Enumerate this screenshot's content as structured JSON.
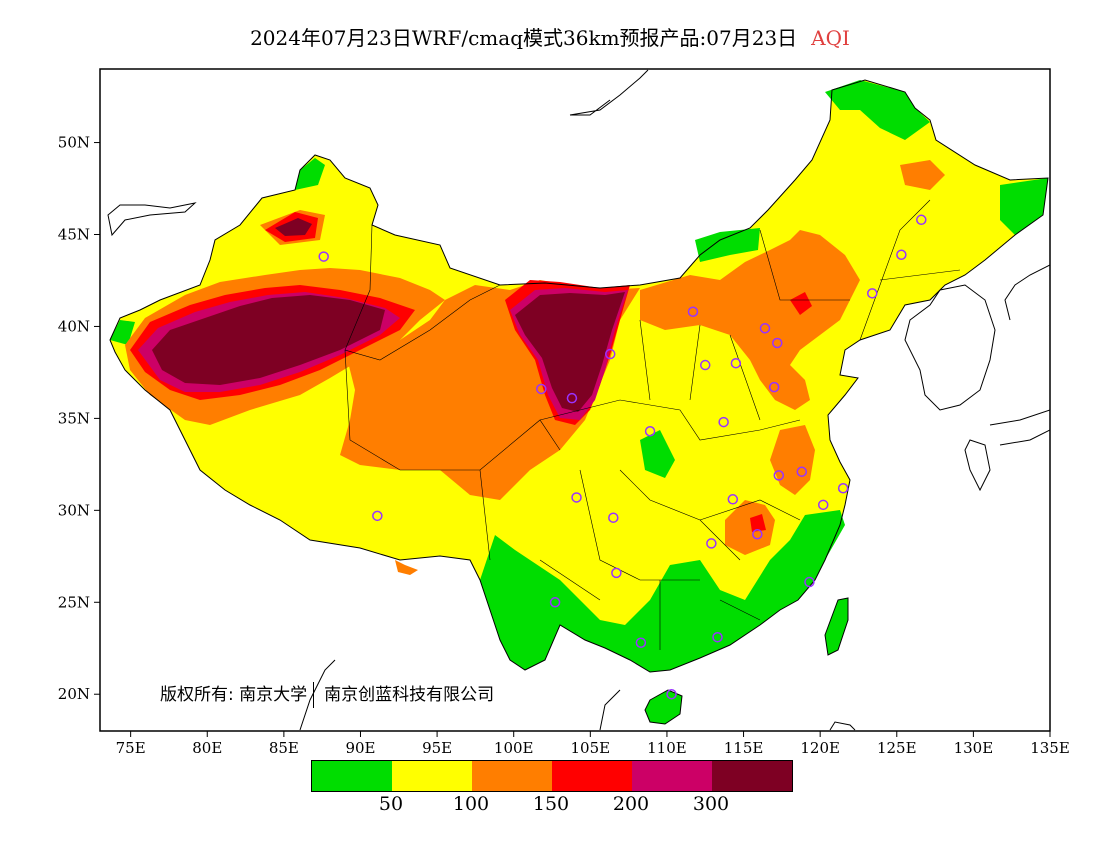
{
  "title": {
    "text": "2024年07月23日WRF/cmaq模式36km预报产品:07月23日",
    "variable": "AQI",
    "variable_color": "#e0403f"
  },
  "axes": {
    "lat_labels": [
      "50N",
      "45N",
      "40N",
      "35N",
      "30N",
      "25N",
      "20N"
    ],
    "lon_labels": [
      "75E",
      "80E",
      "85E",
      "90E",
      "95E",
      "100E",
      "105E",
      "110E",
      "115E",
      "120E",
      "125E",
      "130E",
      "135E"
    ]
  },
  "copyright": {
    "holder_label": "版权所有:",
    "org1": "南京大学",
    "org2": "南京创蓝科技有限公司"
  },
  "legend": {
    "colors": [
      "#00dd00",
      "#ffff00",
      "#ff7e00",
      "#ff0000",
      "#cc0066",
      "#7e0023"
    ],
    "thresholds": [
      "50",
      "100",
      "150",
      "200",
      "300"
    ]
  },
  "colors": {
    "good": "#00dd00",
    "moderate": "#ffff00",
    "unhealthy_sensitive": "#ff7e00",
    "unhealthy": "#ff0000",
    "very_unhealthy": "#cc0066",
    "hazardous": "#7e0023",
    "station_marker": "#9933ff"
  },
  "stations": [
    {
      "lon": 87.6,
      "lat": 43.8
    },
    {
      "lon": 91.1,
      "lat": 29.7
    },
    {
      "lon": 101.8,
      "lat": 36.6
    },
    {
      "lon": 103.8,
      "lat": 36.1
    },
    {
      "lon": 106.3,
      "lat": 38.5
    },
    {
      "lon": 111.7,
      "lat": 40.8
    },
    {
      "lon": 112.5,
      "lat": 37.9
    },
    {
      "lon": 114.5,
      "lat": 38.0
    },
    {
      "lon": 116.4,
      "lat": 39.9
    },
    {
      "lon": 117.2,
      "lat": 39.1
    },
    {
      "lon": 117.0,
      "lat": 36.7
    },
    {
      "lon": 113.7,
      "lat": 34.8
    },
    {
      "lon": 108.9,
      "lat": 34.3
    },
    {
      "lon": 104.1,
      "lat": 30.7
    },
    {
      "lon": 106.5,
      "lat": 29.6
    },
    {
      "lon": 106.7,
      "lat": 26.6
    },
    {
      "lon": 102.7,
      "lat": 25.0
    },
    {
      "lon": 108.3,
      "lat": 22.8
    },
    {
      "lon": 113.3,
      "lat": 23.1
    },
    {
      "lon": 110.3,
      "lat": 20.0
    },
    {
      "lon": 112.9,
      "lat": 28.2
    },
    {
      "lon": 114.3,
      "lat": 30.6
    },
    {
      "lon": 115.9,
      "lat": 28.7
    },
    {
      "lon": 117.3,
      "lat": 31.9
    },
    {
      "lon": 118.8,
      "lat": 32.1
    },
    {
      "lon": 120.2,
      "lat": 30.3
    },
    {
      "lon": 121.5,
      "lat": 31.2
    },
    {
      "lon": 119.3,
      "lat": 26.1
    },
    {
      "lon": 123.4,
      "lat": 41.8
    },
    {
      "lon": 125.3,
      "lat": 43.9
    },
    {
      "lon": 126.6,
      "lat": 45.8
    }
  ]
}
